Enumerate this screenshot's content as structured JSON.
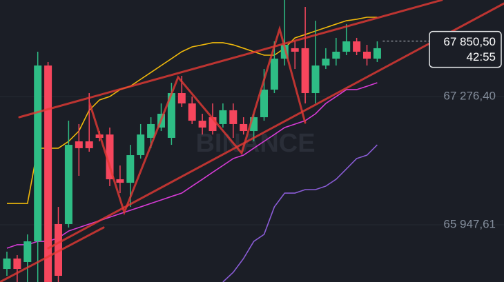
{
  "chart_data": {
    "type": "candlestick",
    "watermark": "BINANCE",
    "up_color": "#2ebd85",
    "down_color": "#f6465d",
    "ylim": [
      65354.7,
      68276.6
    ],
    "yticks": [
      {
        "value": 67276.4,
        "label": "67 276,40"
      },
      {
        "value": 65947.61,
        "label": "65 947,61"
      }
    ],
    "grid": true,
    "open": [
      65490,
      65598,
      65562,
      65776,
      67598,
      65955,
      65955,
      66812,
      66812,
      66883,
      66883,
      66419,
      66383,
      66669,
      66848,
      66955,
      66848,
      67312,
      67205,
      67026,
      67062,
      66991,
      67134,
      66991,
      66919,
      67062,
      67348,
      67669,
      67777,
      67777,
      67312,
      67598,
      67669,
      67741,
      67848,
      67741,
      67669
    ],
    "high": [
      65669,
      65633,
      65848,
      67741,
      67634,
      66133,
      67026,
      66991,
      67312,
      66919,
      66955,
      66562,
      66776,
      66991,
      67062,
      67205,
      67419,
      67491,
      67276,
      67098,
      67205,
      67205,
      67205,
      67062,
      67098,
      67562,
      67848,
      68277,
      67848,
      68205,
      68062,
      67777,
      67884,
      68027,
      67884,
      67812,
      67848
    ],
    "low": [
      65419,
      65355,
      65355,
      65355,
      65355,
      65355,
      65919,
      66455,
      66705,
      66812,
      66348,
      66276,
      66133,
      66634,
      66741,
      66919,
      66776,
      67169,
      66991,
      66883,
      66883,
      66955,
      66848,
      66883,
      66812,
      67026,
      67312,
      67598,
      67562,
      67205,
      67205,
      67562,
      67598,
      67705,
      67705,
      67598,
      67634
    ],
    "close": [
      65598,
      65490,
      65776,
      67598,
      65355,
      65419,
      66776,
      66741,
      66741,
      66848,
      66419,
      66383,
      66669,
      66883,
      66991,
      67098,
      67312,
      67205,
      67026,
      66955,
      66919,
      67134,
      66991,
      66919,
      67062,
      67348,
      67669,
      67812,
      67741,
      67312,
      67598,
      67669,
      67741,
      67848,
      67741,
      67669,
      67777
    ],
    "lines": [
      {
        "color": "#f0b90b",
        "values": [
          66169,
          66169,
          66169,
          66741,
          66741,
          66741,
          66812,
          66919,
          67134,
          67241,
          67276,
          67348,
          67383,
          67455,
          67526,
          67598,
          67669,
          67741,
          67791,
          67812,
          67834,
          67834,
          67812,
          67777,
          67741,
          67705,
          67705,
          67777,
          67884,
          67919,
          67955,
          67991,
          68027,
          68062,
          68077,
          68098,
          68098
        ]
      },
      {
        "color": "#d63bd6",
        "values": [
          65705,
          65741,
          65741,
          65776,
          65776,
          65812,
          65883,
          65919,
          65955,
          65990,
          66026,
          66062,
          66098,
          66133,
          66169,
          66205,
          66241,
          66276,
          66348,
          66419,
          66491,
          66562,
          66634,
          66669,
          66741,
          66812,
          66883,
          66955,
          66991,
          67026,
          67098,
          67205,
          67276,
          67348,
          67348,
          67383,
          67419
        ]
      },
      {
        "color": "#8a5cd6",
        "values": [
          null,
          null,
          null,
          null,
          null,
          null,
          null,
          null,
          null,
          null,
          null,
          null,
          null,
          null,
          null,
          null,
          null,
          null,
          null,
          null,
          null,
          65355,
          65455,
          65598,
          65776,
          65848,
          66133,
          66276,
          66276,
          66312,
          66312,
          66348,
          66419,
          66526,
          66634,
          66669,
          66776
        ]
      }
    ],
    "last_price": {
      "value": 67850.5,
      "label": "67 850,50"
    },
    "countdown": "42:55"
  }
}
